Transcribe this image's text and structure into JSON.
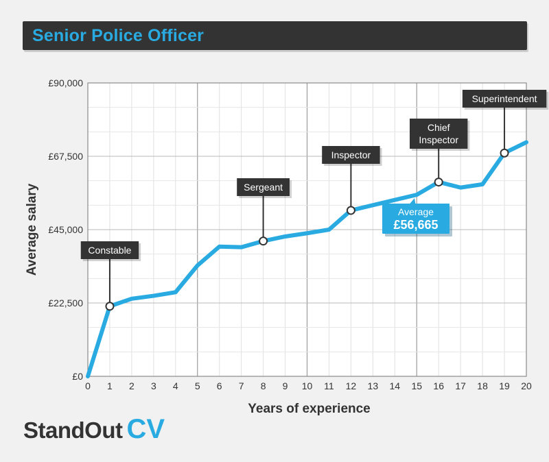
{
  "chart_data": {
    "type": "line",
    "title": "Senior Police Officer",
    "xlabel": "Years of experience",
    "ylabel": "Average salary",
    "xlim": [
      0,
      20
    ],
    "ylim": [
      0,
      90000
    ],
    "grid": true,
    "x_ticks": [
      "0",
      "1",
      "2",
      "3",
      "4",
      "5",
      "6",
      "7",
      "8",
      "9",
      "10",
      "11",
      "12",
      "13",
      "14",
      "15",
      "16",
      "17",
      "18",
      "19",
      "20"
    ],
    "y_ticks": [
      {
        "value": 0,
        "label": "£0"
      },
      {
        "value": 22500,
        "label": "£22,500"
      },
      {
        "value": 45000,
        "label": "£45,000"
      },
      {
        "value": 67500,
        "label": "£67,500"
      },
      {
        "value": 90000,
        "label": "£90,000"
      }
    ],
    "x": [
      0,
      1,
      2,
      3,
      4,
      5,
      6,
      7,
      8,
      9,
      10,
      11,
      12,
      13,
      14,
      15,
      16,
      17,
      18,
      19,
      20
    ],
    "values": [
      0,
      21500,
      23800,
      24700,
      25800,
      34000,
      39800,
      39600,
      41500,
      42900,
      43900,
      45000,
      50900,
      52500,
      54100,
      55700,
      59600,
      57900,
      58900,
      68500,
      71800
    ],
    "color": "#29abe2",
    "annotations": [
      {
        "x": 1,
        "label": "Constable"
      },
      {
        "x": 8,
        "label": "Sergeant"
      },
      {
        "x": 12,
        "label": "Inspector"
      },
      {
        "x": 16,
        "label": "Chief\nInspector"
      },
      {
        "x": 19,
        "label": "Superintendent"
      }
    ],
    "average": {
      "label": "Average",
      "value": "£56,665"
    }
  },
  "logo": {
    "main": "StandOut",
    "accent": "CV"
  }
}
